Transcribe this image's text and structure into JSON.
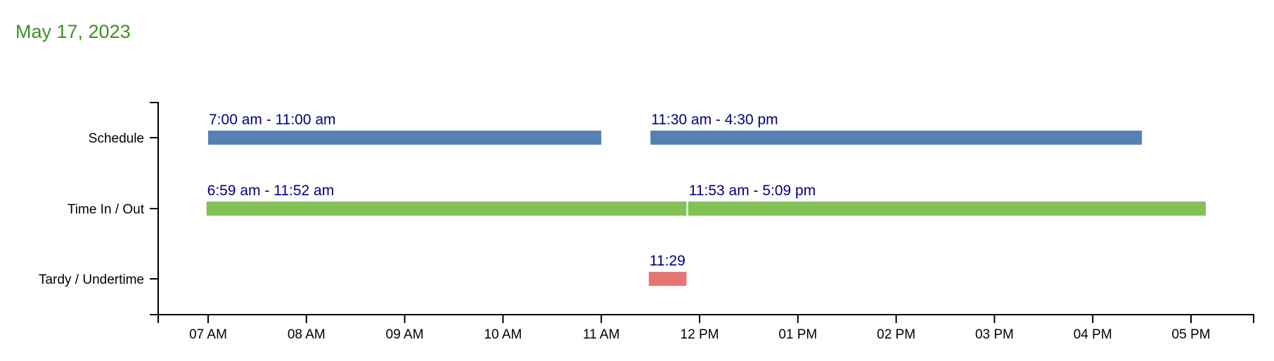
{
  "header": {
    "date": "May 17, 2023"
  },
  "colors": {
    "title": "#3f8f24",
    "label_text": "#000080",
    "Schedule": "#5480b2",
    "Time In / Out": "#82c254",
    "Tardy / Undertime": "#e67674"
  },
  "chart_data": {
    "type": "timeline",
    "title": "May 17, 2023",
    "rows": [
      "Schedule",
      "Time In / Out",
      "Tardy / Undertime"
    ],
    "x_ticks": [
      "07 AM",
      "08 AM",
      "09 AM",
      "10 AM",
      "11 AM",
      "12 PM",
      "01 PM",
      "02 PM",
      "03 PM",
      "04 PM",
      "05 PM"
    ],
    "x_range": [
      "06:30",
      "17:40"
    ],
    "segments": [
      {
        "row": "Schedule",
        "start": "07:00",
        "end": "11:00",
        "label": "7:00 am - 11:00 am"
      },
      {
        "row": "Schedule",
        "start": "11:30",
        "end": "16:30",
        "label": "11:30 am - 4:30 pm"
      },
      {
        "row": "Time In / Out",
        "start": "06:59",
        "end": "11:52",
        "label": "6:59 am - 11:52 am"
      },
      {
        "row": "Time In / Out",
        "start": "11:53",
        "end": "17:09",
        "label": "11:53 am - 5:09 pm"
      },
      {
        "row": "Tardy / Undertime",
        "start": "11:29",
        "end": "11:52",
        "label": "11:29"
      }
    ]
  }
}
